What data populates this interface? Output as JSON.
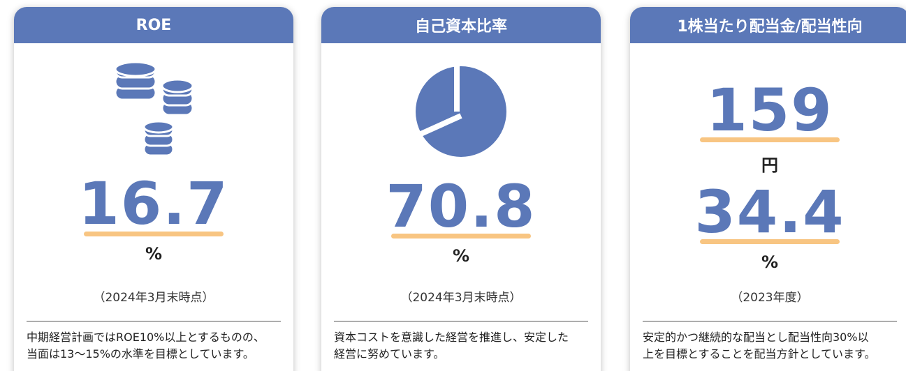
{
  "cards": [
    {
      "title": "ROE",
      "figures": [
        {
          "value": 16.7,
          "unit": "%"
        }
      ],
      "note": "（2024年3月末時点）",
      "description": [
        "中期経営計画ではROE10%以上とするものの、",
        "当面は13～15%の水準を目標としています。"
      ]
    },
    {
      "title": "自己資本比率",
      "figures": [
        {
          "value": 70.8,
          "unit": "%"
        }
      ],
      "note": "（2024年3月末時点）",
      "description": [
        "資本コストを意識した経営を推進し、安定した",
        "経営に努めています。"
      ]
    },
    {
      "title": "1株当たり配当金/配当性向",
      "figures": [
        {
          "value": 159,
          "unit": "円"
        },
        {
          "value": 34.4,
          "unit": "%"
        }
      ],
      "note": "（2023年度）",
      "description": [
        "安定的かつ継続的な配当とし配当性向30%以",
        "上を目標とすることを配当方針としています。"
      ]
    }
  ]
}
